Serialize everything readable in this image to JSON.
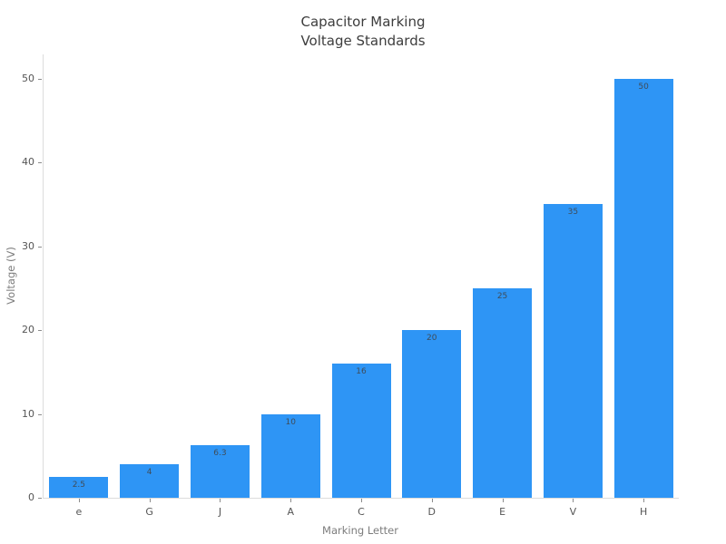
{
  "chart_data": {
    "type": "bar",
    "title_lines": [
      "Capacitor Marking",
      "Voltage Standards"
    ],
    "xlabel": "Marking Letter",
    "ylabel": "Voltage (V)",
    "categories": [
      "e",
      "G",
      "J",
      "A",
      "C",
      "D",
      "E",
      "V",
      "H"
    ],
    "values": [
      2.5,
      4,
      6.3,
      10,
      16,
      20,
      25,
      35,
      50
    ],
    "bar_labels": [
      "2.5",
      "4",
      "6.3",
      "10",
      "16",
      "20",
      "25",
      "35",
      "50"
    ],
    "yticks": [
      0,
      10,
      20,
      30,
      40,
      50
    ],
    "ylim": [
      0,
      52.9
    ],
    "grid": false,
    "legend_position": "none",
    "colors": {
      "bar": "#2E95F5",
      "title": "#3d3d3d",
      "tick_label": "#555555",
      "axis_title": "#7d7d7d",
      "axis_line": "#dcdcdc",
      "tick_mark": "#8c8c8c",
      "bar_label": "#3f4c59",
      "background": "#ffffff"
    }
  }
}
